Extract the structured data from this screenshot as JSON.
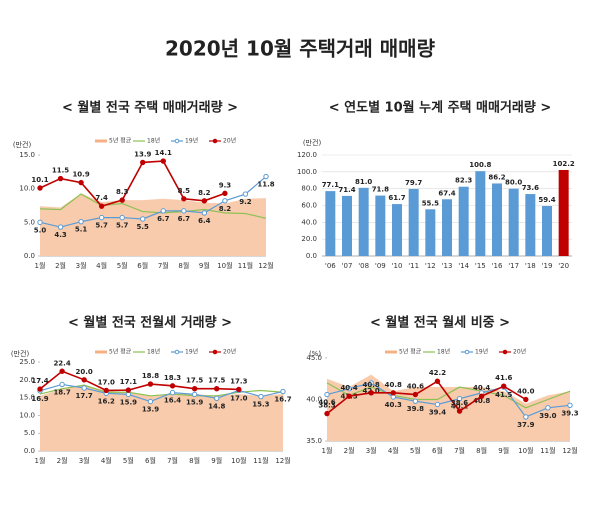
{
  "title": "2020년 10월 주택거래 매매량",
  "chart_data": [
    {
      "type": "line",
      "title": "< 월별 전국 주택 매매거래량 >",
      "unit": "(만건)",
      "categories": [
        "1월",
        "2월",
        "3월",
        "4월",
        "5월",
        "6월",
        "7월",
        "8월",
        "9월",
        "10월",
        "11월",
        "12월"
      ],
      "ylim": [
        0,
        15
      ],
      "yticks": [
        {
          "value": 0,
          "label": "0.0"
        },
        {
          "value": 5,
          "label": "5.0"
        },
        {
          "value": 10,
          "label": "10.0"
        },
        {
          "value": 15,
          "label": "15.0"
        }
      ],
      "grid": false,
      "series": [
        {
          "name": "5년 평균",
          "kind": "area",
          "color": "#f8cbad",
          "values": [
            7.4,
            7.2,
            9.3,
            8.0,
            8.3,
            8.3,
            8.5,
            8.3,
            7.9,
            7.8,
            8.5,
            8.6
          ]
        },
        {
          "name": "18년",
          "kind": "line",
          "color": "#8cc152",
          "values": [
            7.0,
            6.9,
            9.2,
            7.5,
            7.8,
            6.6,
            6.4,
            6.6,
            6.9,
            6.4,
            6.3,
            5.6
          ]
        },
        {
          "name": "19년",
          "kind": "hollow",
          "color": "#5b9bd5",
          "label_pos": "below",
          "values": [
            5.0,
            4.3,
            5.1,
            5.7,
            5.7,
            5.5,
            6.7,
            6.7,
            6.4,
            8.2,
            9.2,
            11.8
          ],
          "value_labels": [
            "5.0",
            "4.3",
            "5.1",
            "5.7",
            "5.7",
            "5.5",
            "6.7",
            "6.7",
            "6.4",
            "8.2",
            "9.2",
            "11.8"
          ]
        },
        {
          "name": "20년",
          "kind": "dot",
          "color": "#c00000",
          "label_pos": "above",
          "values": [
            10.1,
            11.5,
            10.9,
            7.4,
            8.3,
            13.9,
            14.1,
            8.5,
            8.2,
            9.3,
            null,
            null
          ],
          "value_labels": [
            "10.1",
            "11.5",
            "10.9",
            "7.4",
            "8.3",
            "13.9",
            "14.1",
            "8.5",
            "8.2",
            "9.3",
            null,
            null
          ]
        }
      ]
    },
    {
      "type": "bar",
      "title": "< 연도별 10월 누계 주택 매매거래량 >",
      "unit": "(만건)",
      "categories": [
        "'06",
        "'07",
        "'08",
        "'09",
        "'10",
        "'11",
        "'12",
        "'13",
        "'14",
        "'15",
        "'16",
        "'17",
        "'18",
        "'19",
        "'20"
      ],
      "values": [
        77.1,
        71.4,
        81.0,
        71.8,
        61.7,
        79.7,
        55.5,
        67.4,
        82.3,
        100.8,
        86.2,
        80.0,
        73.6,
        59.4,
        102.2
      ],
      "value_labels": [
        "77.1",
        "71.4",
        "81.0",
        "71.8",
        "61.7",
        "79.7",
        "55.5",
        "67.4",
        "82.3",
        "100.8",
        "86.2",
        "80.0",
        "73.6",
        "59.4",
        "102.2"
      ],
      "colors": [
        "#5b9bd5",
        "#5b9bd5",
        "#5b9bd5",
        "#5b9bd5",
        "#5b9bd5",
        "#5b9bd5",
        "#5b9bd5",
        "#5b9bd5",
        "#5b9bd5",
        "#5b9bd5",
        "#5b9bd5",
        "#5b9bd5",
        "#5b9bd5",
        "#5b9bd5",
        "#c00000"
      ],
      "ylim": [
        0,
        120
      ],
      "yticks": [
        {
          "value": 0,
          "label": "0.0"
        },
        {
          "value": 20,
          "label": "20.0"
        },
        {
          "value": 40,
          "label": "40.0"
        },
        {
          "value": 60,
          "label": "60.0"
        },
        {
          "value": 80,
          "label": "80.0"
        },
        {
          "value": 100,
          "label": "100.0"
        },
        {
          "value": 120,
          "label": "120.0"
        }
      ],
      "grid": true
    },
    {
      "type": "line",
      "title": "< 월별 전국 전월세 거래량 >",
      "unit": "(만건)",
      "categories": [
        "1월",
        "2월",
        "3월",
        "4월",
        "5월",
        "6월",
        "7월",
        "8월",
        "9월",
        "10월",
        "11월",
        "12월"
      ],
      "ylim": [
        0,
        25
      ],
      "yticks": [
        {
          "value": 0,
          "label": "0.0"
        },
        {
          "value": 5,
          "label": "5.0"
        },
        {
          "value": 10,
          "label": "10.0"
        },
        {
          "value": 15,
          "label": "15.0"
        },
        {
          "value": 20,
          "label": "20.0"
        },
        {
          "value": 25,
          "label": "25.0"
        }
      ],
      "grid": false,
      "series": [
        {
          "name": "5년 평균",
          "kind": "area",
          "color": "#f8cbad",
          "values": [
            15.5,
            17.5,
            18.5,
            17.0,
            16.5,
            15.5,
            16.0,
            16.0,
            15.5,
            16.0,
            15.5,
            16.0
          ]
        },
        {
          "name": "18년",
          "kind": "line",
          "color": "#8cc152",
          "values": [
            16.0,
            17.5,
            18.5,
            16.5,
            16.5,
            15.5,
            16.0,
            15.5,
            15.5,
            16.5,
            17.0,
            16.5
          ]
        },
        {
          "name": "19년",
          "kind": "hollow",
          "color": "#5b9bd5",
          "label_pos": "below",
          "values": [
            16.9,
            18.7,
            17.7,
            16.2,
            15.9,
            13.9,
            16.4,
            15.9,
            14.8,
            17.0,
            15.3,
            16.7
          ],
          "value_labels": [
            "16.9",
            "18.7",
            "17.7",
            "16.2",
            "15.9",
            "13.9",
            "16.4",
            "15.9",
            "14.8",
            "17.0",
            "15.3",
            "16.7"
          ]
        },
        {
          "name": "20년",
          "kind": "dot",
          "color": "#c00000",
          "label_pos": "above",
          "values": [
            17.4,
            22.4,
            20.0,
            17.0,
            17.1,
            18.8,
            18.3,
            17.5,
            17.5,
            17.3,
            null,
            null
          ],
          "value_labels": [
            "17.4",
            "22.4",
            "20.0",
            "17.0",
            "17.1",
            "18.8",
            "18.3",
            "17.5",
            "17.5",
            "17.3",
            null,
            null
          ]
        }
      ]
    },
    {
      "type": "line",
      "title": "< 월별 전국 월세 비중 >",
      "unit": "(%)",
      "categories": [
        "1월",
        "2월",
        "3월",
        "4월",
        "5월",
        "6월",
        "7월",
        "8월",
        "9월",
        "10월",
        "11월",
        "12월"
      ],
      "ylim": [
        35,
        45
      ],
      "yticks": [
        {
          "value": 35,
          "label": "35.0"
        },
        {
          "value": 40,
          "label": "40.0"
        },
        {
          "value": 45,
          "label": "45.0"
        }
      ],
      "grid": false,
      "series": [
        {
          "name": "5년 평균",
          "kind": "area",
          "color": "#f8cbad",
          "values": [
            42.5,
            41.5,
            43.0,
            41.0,
            41.5,
            41.5,
            41.5,
            41.5,
            41.0,
            39.5,
            40.5,
            41.0
          ]
        },
        {
          "name": "18년",
          "kind": "line",
          "color": "#8cc152",
          "values": [
            42.0,
            40.5,
            41.5,
            40.5,
            40.0,
            40.0,
            41.5,
            41.0,
            40.5,
            39.0,
            40.0,
            41.0
          ]
        },
        {
          "name": "19년",
          "kind": "hollow",
          "color": "#5b9bd5",
          "label_pos": "below",
          "values": [
            40.6,
            41.3,
            42.0,
            40.3,
            39.8,
            39.4,
            40.1,
            40.8,
            41.5,
            37.9,
            39.0,
            39.3
          ],
          "value_labels": [
            "40.6",
            "41.3",
            "42.0",
            "40.3",
            "39.8",
            "39.4",
            "40.1",
            "40.8",
            "41.5",
            "37.9",
            "39.0",
            "39.3"
          ]
        },
        {
          "name": "20년",
          "kind": "dot",
          "color": "#c00000",
          "label_pos": "above",
          "values": [
            38.3,
            40.4,
            40.8,
            40.8,
            40.6,
            42.2,
            38.6,
            40.4,
            41.6,
            40.0,
            null,
            null
          ],
          "value_labels": [
            "38.3",
            "40.4",
            "40.8",
            "40.8",
            "40.6",
            "42.2",
            "38.6",
            "40.4",
            "41.6",
            "40.0",
            null,
            null
          ]
        }
      ]
    }
  ]
}
